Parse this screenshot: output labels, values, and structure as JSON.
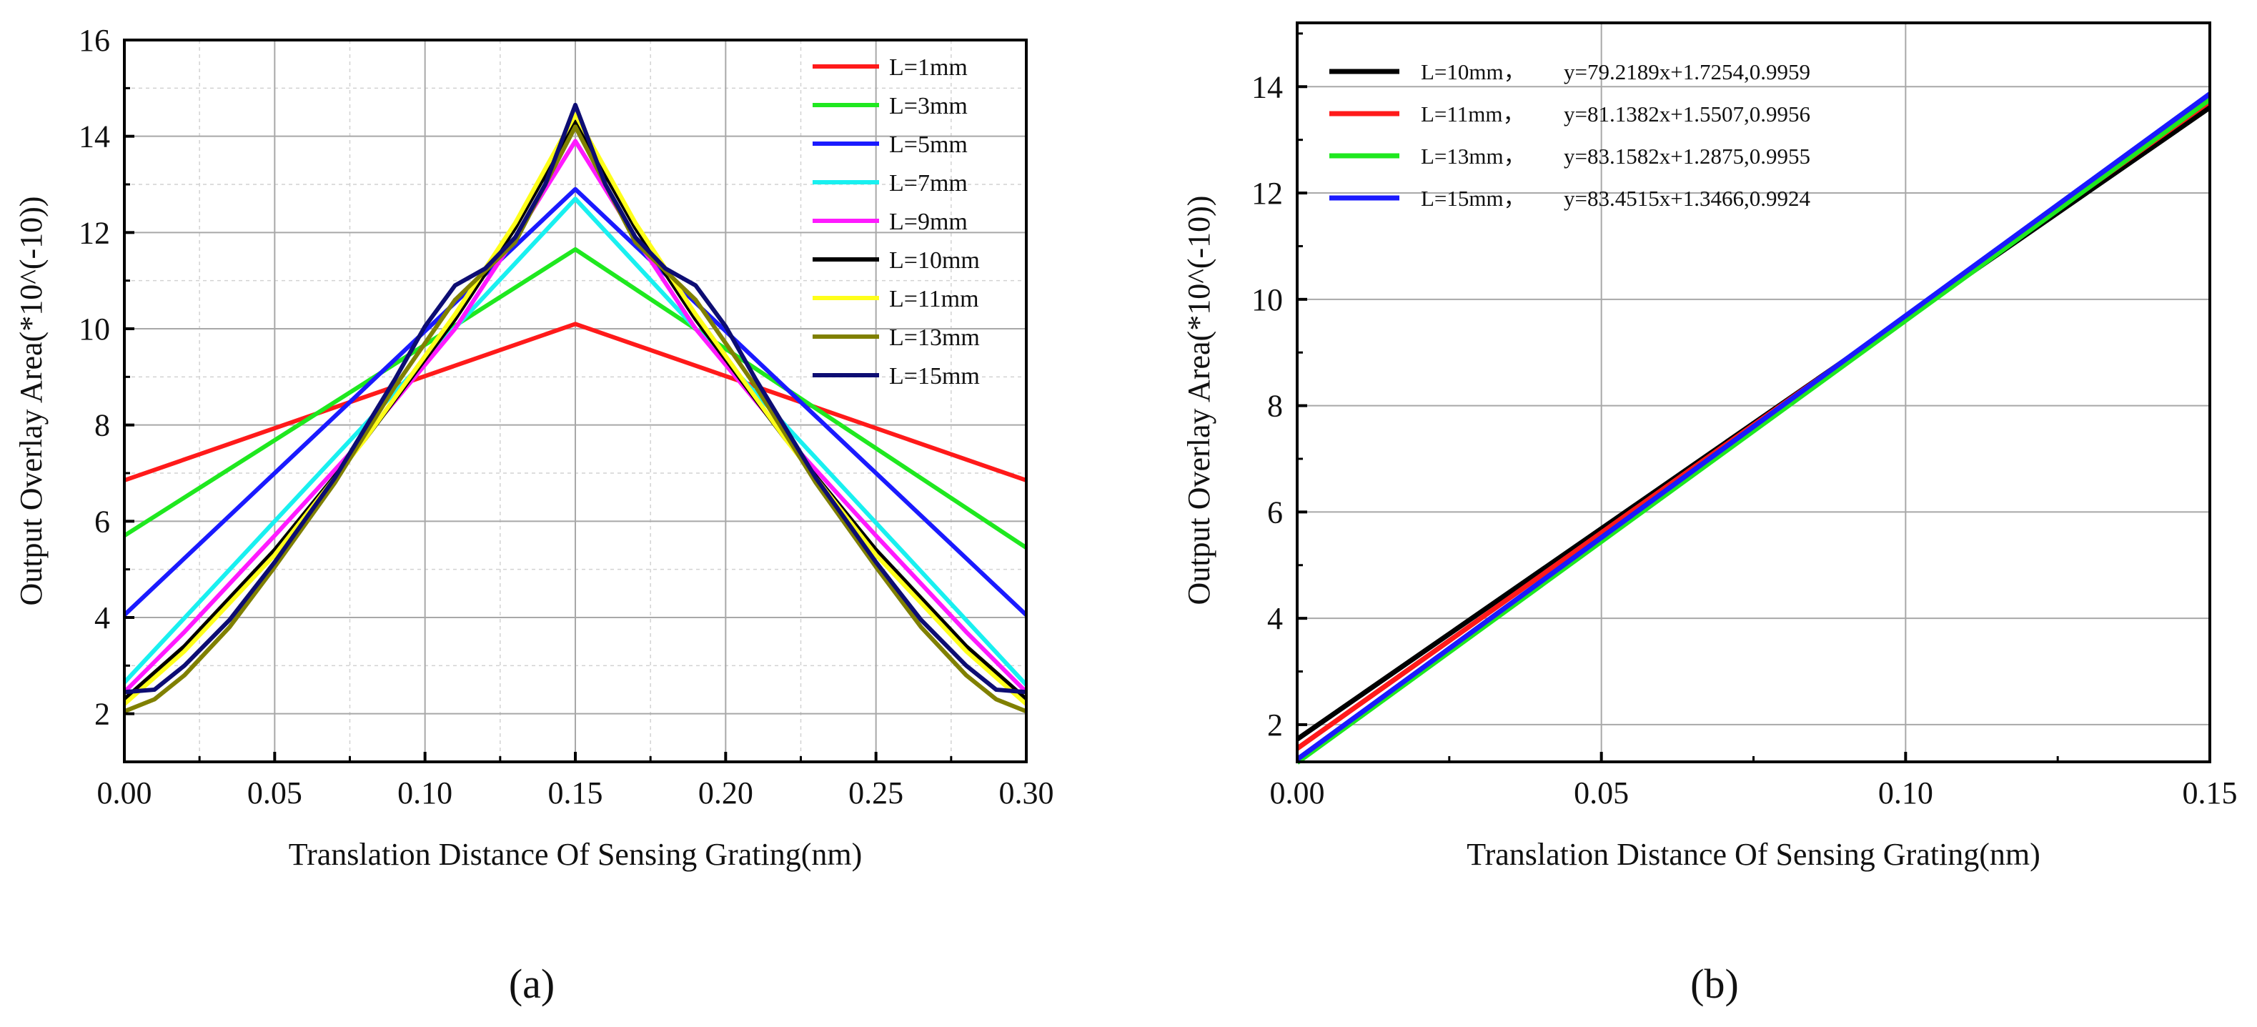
{
  "chart_data": [
    {
      "panel": "(a)",
      "panel_label": "(a)",
      "type": "line",
      "xlabel": "Translation Distance Of Sensing Grating(nm)",
      "ylabel": "Output Overlay Area(*10^(-10))",
      "xlim": [
        0,
        0.3
      ],
      "ylim": [
        1,
        16
      ],
      "xticks": [
        "0.00",
        "0.05",
        "0.10",
        "0.15",
        "0.20",
        "0.25",
        "0.30"
      ],
      "yticks": [
        "2",
        "4",
        "6",
        "8",
        "10",
        "12",
        "14",
        "16"
      ],
      "grid": true,
      "legend_position": "top-right",
      "series": [
        {
          "name": "L=1mm",
          "color": "#ff1a1a",
          "x": [
            0,
            0.15,
            0.3
          ],
          "y": [
            6.85,
            10.1,
            6.85
          ]
        },
        {
          "name": "L=3mm",
          "color": "#1fe81f",
          "x": [
            0,
            0.15,
            0.3
          ],
          "y": [
            5.7,
            11.65,
            5.45
          ]
        },
        {
          "name": "L=5mm",
          "color": "#1a1aff",
          "x": [
            0,
            0.15,
            0.3
          ],
          "y": [
            4.05,
            12.9,
            4.05
          ]
        },
        {
          "name": "L=7mm",
          "color": "#19f0f0",
          "x": [
            0,
            0.15,
            0.3
          ],
          "y": [
            2.65,
            12.7,
            2.6
          ]
        },
        {
          "name": "L=9mm",
          "color": "#ff1aff",
          "x": [
            0,
            0.02,
            0.05,
            0.08,
            0.11,
            0.13,
            0.15,
            0.17,
            0.19,
            0.22,
            0.25,
            0.28,
            0.3
          ],
          "y": [
            2.45,
            3.7,
            5.7,
            7.75,
            10.0,
            11.9,
            13.9,
            11.9,
            10.0,
            7.75,
            5.7,
            3.7,
            2.45
          ]
        },
        {
          "name": "L=10mm",
          "color": "#000000",
          "x": [
            0,
            0.02,
            0.05,
            0.08,
            0.11,
            0.13,
            0.15,
            0.17,
            0.19,
            0.22,
            0.25,
            0.28,
            0.3
          ],
          "y": [
            2.3,
            3.4,
            5.4,
            7.7,
            10.2,
            12.1,
            14.3,
            12.1,
            10.2,
            7.7,
            5.4,
            3.4,
            2.3
          ]
        },
        {
          "name": "L=11mm",
          "color": "#ffff1a",
          "x": [
            0,
            0.02,
            0.05,
            0.08,
            0.11,
            0.13,
            0.15,
            0.17,
            0.19,
            0.22,
            0.25,
            0.28,
            0.3
          ],
          "y": [
            2.2,
            3.3,
            5.3,
            7.7,
            10.3,
            12.2,
            14.45,
            12.2,
            10.3,
            7.7,
            5.3,
            3.3,
            2.2
          ]
        },
        {
          "name": "L=13mm",
          "color": "#808000",
          "x": [
            0,
            0.01,
            0.02,
            0.035,
            0.05,
            0.07,
            0.09,
            0.11,
            0.13,
            0.15,
            0.17,
            0.19,
            0.21,
            0.23,
            0.25,
            0.265,
            0.28,
            0.29,
            0.3
          ],
          "y": [
            2.05,
            2.3,
            2.8,
            3.8,
            5.05,
            6.8,
            8.8,
            10.6,
            11.8,
            14.2,
            11.8,
            10.6,
            8.8,
            6.8,
            5.05,
            3.8,
            2.8,
            2.3,
            2.05
          ]
        },
        {
          "name": "L=15mm",
          "color": "#0d0d73",
          "x": [
            0,
            0.01,
            0.02,
            0.035,
            0.05,
            0.07,
            0.09,
            0.1,
            0.11,
            0.12,
            0.13,
            0.14,
            0.15,
            0.16,
            0.17,
            0.18,
            0.19,
            0.2,
            0.21,
            0.23,
            0.25,
            0.265,
            0.28,
            0.29,
            0.3
          ],
          "y": [
            2.45,
            2.5,
            3.0,
            3.95,
            5.15,
            6.9,
            8.95,
            10.05,
            10.9,
            11.25,
            11.9,
            13.0,
            14.65,
            13.0,
            11.9,
            11.25,
            10.9,
            10.05,
            8.95,
            6.9,
            5.15,
            3.95,
            3.0,
            2.5,
            2.45
          ]
        }
      ]
    },
    {
      "panel": "(b)",
      "panel_label": "(b)",
      "type": "line",
      "xlabel": "Translation Distance Of Sensing Grating(nm)",
      "ylabel": "Output Overlay Area(*10^(-10))",
      "xlim": [
        0,
        0.15
      ],
      "ylim": [
        1.3,
        15.2
      ],
      "xticks": [
        "0.00",
        "0.05",
        "0.10",
        "0.15"
      ],
      "yticks": [
        "2",
        "4",
        "6",
        "8",
        "10",
        "12",
        "14"
      ],
      "grid": true,
      "legend_position": "top-left",
      "series": [
        {
          "name": "L=10mm，",
          "equation": "y=79.2189x+1.7254,0.9959",
          "color": "#000000",
          "x": [
            0,
            0.15
          ],
          "y": [
            1.7254,
            13.608
          ]
        },
        {
          "name": "L=11mm，",
          "equation": "y=81.1382x+1.5507,0.9956",
          "color": "#ff1a1a",
          "x": [
            0,
            0.15
          ],
          "y": [
            1.5507,
            13.721
          ]
        },
        {
          "name": "L=13mm，",
          "equation": "y=83.1582x+1.2875,0.9955",
          "color": "#1fe81f",
          "x": [
            0,
            0.15
          ],
          "y": [
            1.2875,
            13.761
          ]
        },
        {
          "name": "L=15mm，",
          "equation": "y=83.4515x+1.3466,0.9924",
          "color": "#1a1aff",
          "x": [
            0,
            0.15
          ],
          "y": [
            1.3466,
            13.864
          ]
        }
      ]
    }
  ]
}
